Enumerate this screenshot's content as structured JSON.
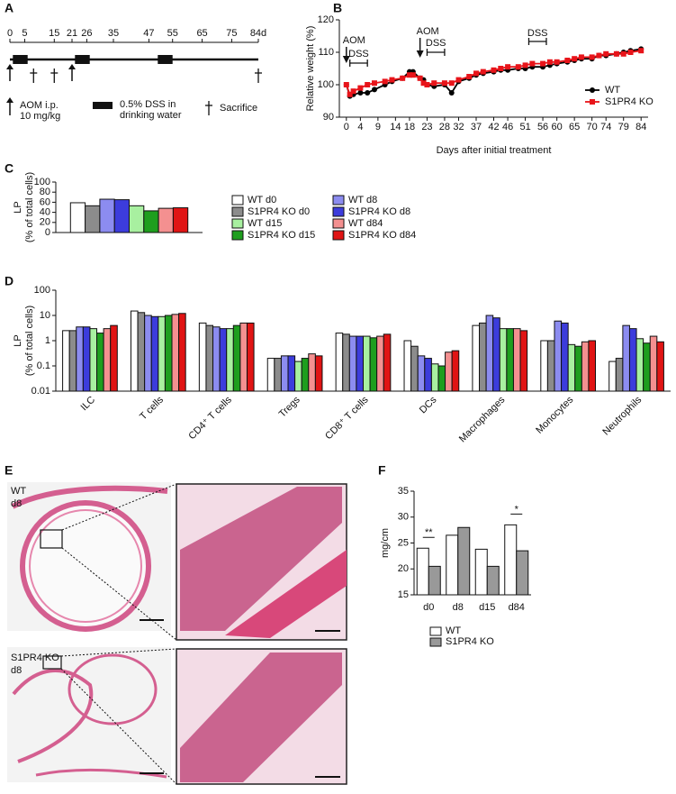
{
  "timeline": {
    "panel": "A",
    "xlim": [
      0,
      84
    ],
    "ticks": [
      0,
      5,
      15,
      21,
      26,
      35,
      47,
      55,
      65,
      75,
      {
        "value": 84,
        "label": "84d"
      }
    ],
    "arrows": [
      0,
      21
    ],
    "dss": [
      [
        1,
        6
      ],
      [
        22,
        27
      ],
      [
        50,
        55
      ]
    ],
    "sacrifice": [
      8,
      15,
      84
    ],
    "legend": {
      "aom": [
        "AOM i.p.",
        "10 mg/kg"
      ],
      "dss": [
        "0.5% DSS in",
        "drinking water"
      ],
      "sacrifice": "Sacrifice"
    }
  },
  "histology": {
    "panel": "E",
    "rows": [
      {
        "labels": [
          "WT",
          "d8"
        ]
      },
      {
        "labels": [
          "S1PR4 KO",
          "d8"
        ]
      }
    ]
  },
  "chart_data": [
    {
      "panel": "B",
      "type": "line",
      "x_label": "Days after initial treatment",
      "y_label": "Relative weight (%)",
      "x": [
        0,
        1,
        2,
        4,
        6,
        8,
        11,
        13,
        16,
        18,
        19,
        21,
        22,
        23,
        25,
        28,
        30,
        32,
        35,
        37,
        39,
        42,
        44,
        46,
        49,
        51,
        53,
        56,
        58,
        60,
        63,
        65,
        67,
        70,
        72,
        74,
        77,
        79,
        81,
        84
      ],
      "xlim": [
        -2,
        86
      ],
      "xticks": [
        0,
        4,
        9,
        14,
        18,
        23,
        28,
        32,
        37,
        42,
        46,
        51,
        56,
        60,
        65,
        70,
        74,
        79,
        84
      ],
      "ylim": [
        90,
        120
      ],
      "yticks": [
        90,
        100,
        110,
        120
      ],
      "series": [
        {
          "name": "WT",
          "color": "#000000",
          "marker": "circle",
          "values": [
            100,
            96.5,
            97,
            97.5,
            97.5,
            98.5,
            100,
            101,
            102,
            104,
            104,
            102,
            101.5,
            100,
            99.5,
            100,
            97.5,
            101,
            102,
            103,
            103.5,
            104,
            104.5,
            104.5,
            105,
            105,
            105.5,
            105.5,
            106,
            106.5,
            107,
            107.5,
            108,
            108,
            109,
            109,
            109.5,
            110,
            110.5,
            111
          ]
        },
        {
          "name": "S1PR4 KO",
          "color": "#e8141a",
          "marker": "square",
          "values": [
            100,
            97,
            98,
            99,
            100,
            100.5,
            101,
            101.5,
            102,
            103,
            103,
            102,
            100.5,
            100,
            100.5,
            100.5,
            100.5,
            101.5,
            102.5,
            103.5,
            104,
            104.5,
            105,
            105.5,
            105.5,
            106,
            106.5,
            106.5,
            107,
            107,
            107.5,
            108,
            108.5,
            108.5,
            109,
            109.5,
            109.5,
            109.5,
            110,
            110.5
          ]
        }
      ],
      "legend": "lower right",
      "annotations": [
        {
          "text": "AOM",
          "x": 0
        },
        {
          "text": "DSS",
          "x": [
            1,
            6
          ]
        },
        {
          "text": "AOM",
          "x": 21
        },
        {
          "text": "DSS",
          "x": [
            23,
            28
          ]
        },
        {
          "text": "DSS",
          "x": [
            52,
            57
          ]
        }
      ]
    },
    {
      "panel": "C",
      "type": "bar",
      "y_label": [
        "LP",
        "(% of total cells)"
      ],
      "categories": [
        null
      ],
      "ylim": [
        0,
        100
      ],
      "yticks": [
        0,
        20,
        40,
        60,
        80,
        100
      ],
      "legend": "right",
      "series": [
        {
          "name": "WT d0",
          "color": "#ffffff",
          "values": [
            59
          ]
        },
        {
          "name": "S1PR4 KO d0",
          "color": "#8c8c8c",
          "values": [
            53
          ]
        },
        {
          "name": "WT d8",
          "color": "#8c8cf0",
          "values": [
            66
          ]
        },
        {
          "name": "S1PR4 KO d8",
          "color": "#3c3cdc",
          "values": [
            65
          ]
        },
        {
          "name": "WT d15",
          "color": "#a8f0a0",
          "values": [
            53
          ]
        },
        {
          "name": "S1PR4 KO d15",
          "color": "#1e9e1e",
          "values": [
            43
          ]
        },
        {
          "name": "WT d84",
          "color": "#f49090",
          "values": [
            48
          ]
        },
        {
          "name": "S1PR4 KO d84",
          "color": "#e01414",
          "values": [
            49
          ]
        }
      ]
    },
    {
      "panel": "D",
      "type": "bar",
      "y_label": [
        "LP",
        "(% of total cells)"
      ],
      "log_scale": true,
      "categories": [
        "ILC",
        "T cells",
        "CD4⁺ T cells",
        "Tregs",
        "CD8⁺ T cells",
        "DCs",
        "Macrophages",
        "Monocytes",
        "Neutrophils"
      ],
      "ylim": [
        0.01,
        100
      ],
      "yticks": [
        0.01,
        0.1,
        1,
        10,
        100
      ],
      "series": [
        {
          "color": "#ffffff",
          "values": [
            2.5,
            15,
            5,
            0.2,
            2,
            1.0,
            4,
            1,
            0.15
          ]
        },
        {
          "color": "#8c8c8c",
          "values": [
            2.5,
            13,
            4,
            0.2,
            1.8,
            0.6,
            5,
            1,
            0.2
          ]
        },
        {
          "color": "#8c8cf0",
          "values": [
            3.5,
            10,
            3.5,
            0.25,
            1.5,
            0.25,
            10,
            6,
            4
          ]
        },
        {
          "color": "#3c3cdc",
          "values": [
            3.5,
            9,
            3,
            0.25,
            1.5,
            0.2,
            8,
            5,
            3
          ]
        },
        {
          "color": "#a8f0a0",
          "values": [
            3,
            9,
            3,
            0.15,
            1.5,
            0.12,
            3,
            0.7,
            1.2
          ]
        },
        {
          "color": "#1e9e1e",
          "values": [
            2,
            10,
            4,
            0.2,
            1.3,
            0.1,
            3,
            0.6,
            0.8
          ]
        },
        {
          "color": "#f49090",
          "values": [
            3,
            11,
            5,
            0.3,
            1.5,
            0.35,
            3,
            0.9,
            1.5
          ]
        },
        {
          "color": "#e01414",
          "values": [
            4,
            12,
            5,
            0.25,
            1.8,
            0.4,
            2.5,
            1,
            0.9
          ]
        }
      ]
    },
    {
      "panel": "F",
      "type": "bar",
      "y_label": "mg/cm",
      "categories": [
        "d0",
        "d8",
        "d15",
        "d84"
      ],
      "ylim": [
        15,
        35
      ],
      "yticks": [
        15,
        20,
        25,
        30,
        35
      ],
      "legend": "below",
      "series": [
        {
          "name": "WT",
          "color": "#ffffff",
          "values": [
            24,
            26.5,
            23.8,
            28.5
          ]
        },
        {
          "name": "S1PR4 KO",
          "color": "#999999",
          "values": [
            20.5,
            28,
            20.5,
            23.5
          ]
        }
      ],
      "annotations": [
        {
          "text": "**",
          "category": 0
        },
        {
          "text": "*",
          "category": 3
        }
      ]
    }
  ]
}
